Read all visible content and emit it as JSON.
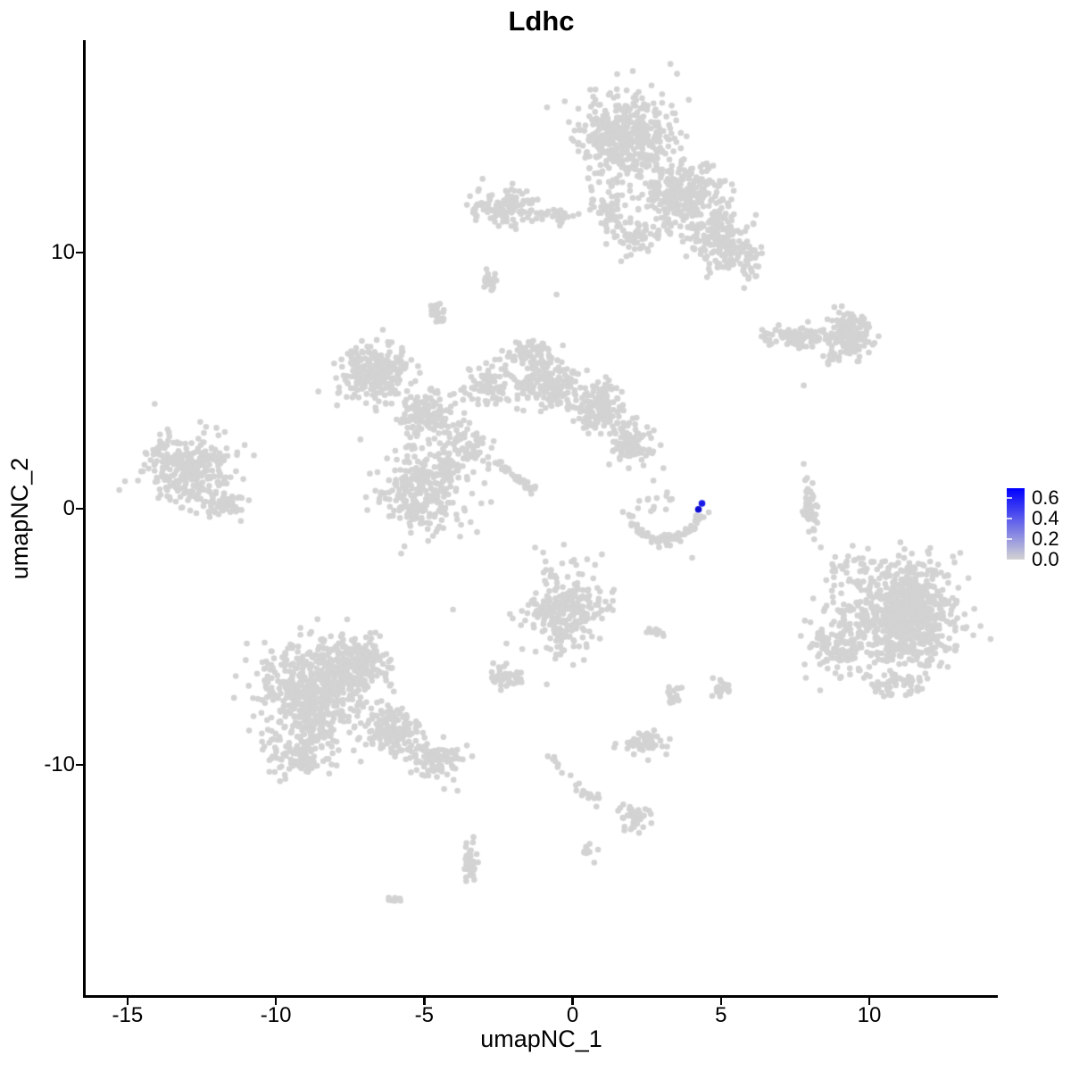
{
  "title": "Ldhc",
  "axes": {
    "x": {
      "label": "umapNC_1",
      "min": -16.44,
      "max": 14.33,
      "tick_values": [
        -15,
        -10,
        -5,
        0,
        5,
        10
      ],
      "tick_labels": [
        "-15",
        "-10",
        "-5",
        "0",
        "5",
        "10"
      ]
    },
    "y": {
      "label": "umapNC_2",
      "min": -18.99,
      "max": 18.29,
      "tick_values": [
        10,
        0,
        -10
      ],
      "tick_labels": [
        "10",
        "0",
        "-10"
      ]
    }
  },
  "legend": {
    "tick_labels": [
      "0.6",
      "0.4",
      "0.2",
      "0.0"
    ],
    "tick_values": [
      0.6,
      0.4,
      0.2,
      0.0
    ],
    "scale_max": 0.7,
    "high_color": "#0000FF",
    "low_color": "#D3D3D3"
  },
  "colors": {
    "point_grey": "#D3D3D3",
    "background": "#FFFFFF",
    "axis": "#000000",
    "text": "#000000"
  },
  "chart_data": {
    "type": "scatter",
    "title": "Ldhc",
    "xlabel": "umapNC_1",
    "ylabel": "umapNC_2",
    "xlim": [
      -16.44,
      14.33
    ],
    "ylim": [
      -18.99,
      18.29
    ],
    "grid": false,
    "legend_position": "right",
    "point_radius_px": 3.3,
    "seed": 11,
    "clusters": [
      {
        "name": "top-main",
        "cx": 1.74,
        "cy": 14.46,
        "sx": 0.75,
        "sy": 0.84,
        "n": 460
      },
      {
        "name": "top-band",
        "cx": 3.7,
        "cy": 12.3,
        "sx": 0.66,
        "sy": 0.68,
        "n": 280
      },
      {
        "name": "top-lower-lobe",
        "cx": 4.9,
        "cy": 10.6,
        "sx": 0.53,
        "sy": 0.61,
        "n": 180
      },
      {
        "name": "top-hole-sparse",
        "cx": 2.14,
        "cy": 10.73,
        "sx": 0.38,
        "sy": 0.44,
        "n": 65
      },
      {
        "name": "top-tail",
        "cx": 5.89,
        "cy": 9.76,
        "sx": 0.23,
        "sy": 0.35,
        "n": 40
      },
      {
        "name": "top-left-arm",
        "cx": 1.18,
        "cy": 11.6,
        "sx": 0.28,
        "sy": 0.42,
        "n": 55
      },
      {
        "name": "upper-left-band",
        "cx": -2.38,
        "cy": 11.78,
        "sx": 0.6,
        "sy": 0.39,
        "n": 115
      },
      {
        "name": "upper-left-band-tail",
        "cx": -0.63,
        "cy": 11.43,
        "sx": 0.33,
        "sy": 0.14,
        "n": 30
      },
      {
        "name": "tiny-upper-1",
        "cx": -2.83,
        "cy": 8.89,
        "sx": 0.15,
        "sy": 0.21,
        "n": 22
      },
      {
        "name": "tiny-upper-2",
        "cx": -4.57,
        "cy": 7.6,
        "sx": 0.17,
        "sy": 0.23,
        "n": 28
      },
      {
        "name": "branch-left-dense",
        "cx": -6.59,
        "cy": 5.3,
        "sx": 0.6,
        "sy": 0.58,
        "n": 260
      },
      {
        "name": "branch-lower-left",
        "cx": -4.93,
        "cy": 3.66,
        "sx": 0.45,
        "sy": 0.49,
        "n": 140
      },
      {
        "name": "branch-mid-sparse",
        "cx": -2.89,
        "cy": 4.88,
        "sx": 0.38,
        "sy": 0.44,
        "n": 80
      },
      {
        "name": "branch-mid-dense",
        "cx": -0.87,
        "cy": 4.88,
        "sx": 0.53,
        "sy": 0.53,
        "n": 175
      },
      {
        "name": "branch-right",
        "cx": 0.87,
        "cy": 4.01,
        "sx": 0.45,
        "sy": 0.49,
        "n": 150
      },
      {
        "name": "branch-right-lower",
        "cx": 1.98,
        "cy": 2.61,
        "sx": 0.38,
        "sy": 0.44,
        "n": 100
      },
      {
        "name": "branch-top-spur",
        "cx": -1.47,
        "cy": 6.1,
        "sx": 0.38,
        "sy": 0.26,
        "n": 60
      },
      {
        "name": "branch-bridge",
        "cx": -3.58,
        "cy": 2.44,
        "sx": 0.42,
        "sy": 0.49,
        "n": 70
      },
      {
        "name": "left-island-main",
        "cx": -13.05,
        "cy": 1.57,
        "sx": 0.75,
        "sy": 0.66,
        "n": 300
      },
      {
        "name": "left-island-tail",
        "cx": -11.7,
        "cy": 0.17,
        "sx": 0.42,
        "sy": 0.28,
        "n": 60
      },
      {
        "name": "center-blob",
        "cx": -5.02,
        "cy": 0.7,
        "sx": 0.72,
        "sy": 0.79,
        "n": 310
      },
      {
        "name": "center-low-blob",
        "cx": -0.21,
        "cy": -4.01,
        "sx": 0.63,
        "sy": 0.79,
        "n": 290
      },
      {
        "name": "right-main",
        "cx": 11.31,
        "cy": -4.11,
        "sx": 0.83,
        "sy": 0.96,
        "n": 800
      },
      {
        "name": "right-left-fringe",
        "cx": 8.9,
        "cy": -5.23,
        "sx": 0.53,
        "sy": 0.7,
        "n": 130
      },
      {
        "name": "right-top-fringe",
        "cx": 9.35,
        "cy": -2.61,
        "sx": 0.45,
        "sy": 0.44,
        "n": 40
      },
      {
        "name": "right-bottom-fringe",
        "cx": 10.86,
        "cy": -6.79,
        "sx": 0.6,
        "sy": 0.26,
        "n": 60
      },
      {
        "name": "bottom-left-main",
        "cx": -8.69,
        "cy": -7.32,
        "sx": 0.83,
        "sy": 1.05,
        "n": 620
      },
      {
        "name": "bottom-left-apex",
        "cx": -7.19,
        "cy": -6.1,
        "sx": 0.53,
        "sy": 0.53,
        "n": 210
      },
      {
        "name": "bottom-left-tail1",
        "cx": -5.98,
        "cy": -8.71,
        "sx": 0.45,
        "sy": 0.44,
        "n": 150
      },
      {
        "name": "bottom-left-tail2",
        "cx": -4.63,
        "cy": -9.76,
        "sx": 0.45,
        "sy": 0.31,
        "n": 90
      },
      {
        "name": "bottom-left-bottom",
        "cx": -9.29,
        "cy": -9.76,
        "sx": 0.45,
        "sy": 0.35,
        "n": 80
      },
      {
        "name": "small-dash-mid",
        "cx": 2.74,
        "cy": -4.81,
        "sx": 0.12,
        "sy": 0.09,
        "n": 12
      },
      {
        "name": "small-pair-left",
        "cx": 3.34,
        "cy": -7.32,
        "sx": 0.12,
        "sy": 0.21,
        "n": 18
      },
      {
        "name": "small-pair-right",
        "cx": 4.99,
        "cy": -7.04,
        "sx": 0.15,
        "sy": 0.21,
        "n": 22
      },
      {
        "name": "bottom-center-blob",
        "cx": 2.38,
        "cy": -9.06,
        "sx": 0.42,
        "sy": 0.23,
        "n": 55
      },
      {
        "name": "bottom-small",
        "cx": 2.08,
        "cy": -12.09,
        "sx": 0.27,
        "sy": 0.26,
        "n": 42
      },
      {
        "name": "bottom-dash",
        "cx": 0.57,
        "cy": -13.41,
        "sx": 0.11,
        "sy": 0.14,
        "n": 10
      },
      {
        "name": "bottom-vertical",
        "cx": -3.46,
        "cy": -13.87,
        "sx": 0.12,
        "sy": 0.39,
        "n": 34
      },
      {
        "name": "bottom-tiny-dash",
        "cx": -5.98,
        "cy": -15.26,
        "sx": 0.12,
        "sy": 0.07,
        "n": 8
      },
      {
        "name": "mid-small-blob",
        "cx": -2.32,
        "cy": -6.62,
        "sx": 0.3,
        "sy": 0.23,
        "n": 45
      },
      {
        "name": "right-vertical-wisp",
        "cx": 8.03,
        "cy": 0.07,
        "sx": 0.15,
        "sy": 0.56,
        "n": 45
      },
      {
        "name": "ne-band",
        "cx": 7.7,
        "cy": 6.69,
        "sx": 0.6,
        "sy": 0.21,
        "n": 90
      },
      {
        "name": "ne-band-blob",
        "cx": 9.35,
        "cy": 6.9,
        "sx": 0.38,
        "sy": 0.42,
        "n": 150
      },
      {
        "name": "ne-band-tail",
        "cx": 8.69,
        "cy": 5.85,
        "sx": 0.15,
        "sy": 0.14,
        "n": 12
      },
      {
        "name": "smile-scatter-above",
        "cx": 3.0,
        "cy": 0.35,
        "sx": 0.45,
        "sy": 0.33,
        "n": 14
      }
    ],
    "streaks": [
      {
        "name": "diag-streak",
        "x1": -2.53,
        "y1": 1.81,
        "x2": -1.23,
        "y2": 0.63,
        "n": 45,
        "jitter": 0.07
      },
      {
        "name": "bottom-chain",
        "x1": -0.81,
        "y1": -9.69,
        "x2": 0.87,
        "y2": -11.57,
        "n": 22,
        "jitter": 0.14
      }
    ],
    "arcs": [
      {
        "name": "smile-arc",
        "cx": 3.1,
        "cy": 0.35,
        "rx": 1.35,
        "ry": 1.57,
        "from_deg": 195,
        "to_deg": 350,
        "n": 85,
        "jitter": 0.08
      }
    ],
    "singles": [
      [
        -0.54,
        8.36
      ],
      [
        7.79,
        4.81
      ],
      [
        -4.03,
        -3.94
      ],
      [
        8.75,
        -2.16
      ],
      [
        4.03,
        -1.92
      ],
      [
        -4.33,
        -10.94
      ],
      [
        -3.88,
        -11.01
      ],
      [
        -0.87,
        -6.86
      ],
      [
        -3.34,
        -12.82
      ]
    ],
    "highlighted_points": [
      {
        "x": 4.36,
        "y": 0.21,
        "value": 0.62,
        "color": "#1A1AE8"
      },
      {
        "x": 4.24,
        "y": -0.03,
        "value": 0.55,
        "color": "#0B0BD0"
      }
    ]
  }
}
